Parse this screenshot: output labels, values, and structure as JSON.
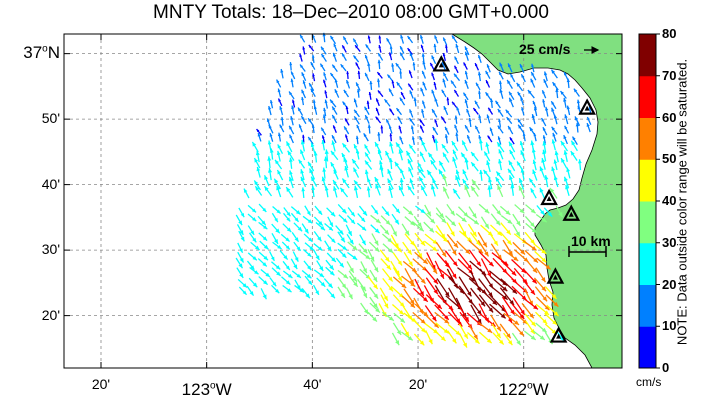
{
  "title": "MNTY Totals: 18–Dec–2010 08:00 GMT+0.000",
  "lat_labels": [
    {
      "text": "37",
      "unit": "N",
      "lat": 37.0,
      "major": true
    },
    {
      "text": "50'",
      "lat": 36.8333
    },
    {
      "text": "40'",
      "lat": 36.6667
    },
    {
      "text": "30'",
      "lat": 36.5
    },
    {
      "text": "20'",
      "lat": 36.3333
    }
  ],
  "lon_labels": [
    {
      "text": "20'",
      "lon": -123.3333
    },
    {
      "text": "123",
      "unit": "W",
      "lon": -123.0,
      "major": true
    },
    {
      "text": "40'",
      "lon": -122.6667
    },
    {
      "text": "20'",
      "lon": -122.3333
    },
    {
      "text": "122",
      "unit": "W",
      "lon": -122.0,
      "major": true
    }
  ],
  "map_extent": {
    "lon_min": -123.45,
    "lon_max": -121.69,
    "lat_min": 36.2,
    "lat_max": 37.05
  },
  "colorbar": {
    "ticks": [
      "0",
      "10",
      "20",
      "30",
      "40",
      "50",
      "60",
      "70",
      "80"
    ],
    "colors": [
      "#0000ff",
      "#0080ff",
      "#00ffff",
      "#80ff80",
      "#ffff00",
      "#ff8000",
      "#ff0000",
      "#800000"
    ],
    "unit": "cm/s"
  },
  "note": "NOTE: Data outside color range will be saturated.",
  "scale_arrow_label": "25 cm/s",
  "scale_bar_label": "10 km",
  "land_color": "#80e080",
  "sites": [
    {
      "lon": -122.26,
      "lat": 36.97
    },
    {
      "lon": -121.8,
      "lat": 36.86
    },
    {
      "lon": -121.92,
      "lat": 36.63
    },
    {
      "lon": -121.85,
      "lat": 36.59
    },
    {
      "lon": -121.9,
      "lat": 36.43
    },
    {
      "lon": -121.89,
      "lat": 36.28
    }
  ]
}
